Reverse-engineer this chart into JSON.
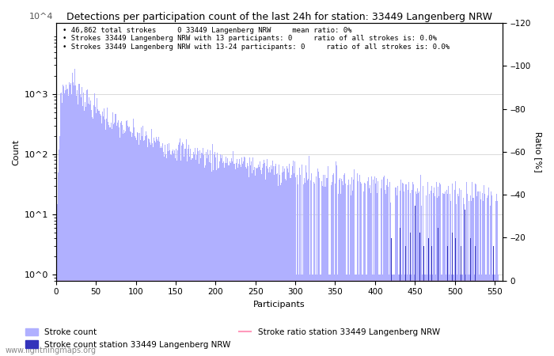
{
  "title": "Detections per participation count of the last 24h for station: 33449 Langenberg NRW",
  "xlabel": "Participants",
  "ylabel_left": "Count",
  "ylabel_right": "Ratio [%]",
  "annotation_lines": [
    "46,862 total strokes     0 33449 Langenberg NRW     mean ratio: 0%",
    "Strokes 33449 Langenberg NRW with 13 participants: 0     ratio of all strokes is: 0.0%",
    "Strokes 33449 Langenberg NRW with 13-24 participants: 0     ratio of all strokes is: 0.0%"
  ],
  "bar_color": "#b0b0ff",
  "bar_color_station": "#3333bb",
  "ratio_line_color": "#ff99bb",
  "legend_entries": [
    "Stroke count",
    "Stroke count station 33449 Langenberg NRW",
    "Stroke ratio station 33449 Langenberg NRW"
  ],
  "xlim": [
    0,
    560
  ],
  "ylim_right": [
    0,
    120
  ],
  "right_yticks": [
    0,
    20,
    40,
    60,
    80,
    100,
    120
  ],
  "watermark": "www.lightningmaps.org",
  "figsize": [
    7.0,
    4.5
  ],
  "dpi": 100
}
